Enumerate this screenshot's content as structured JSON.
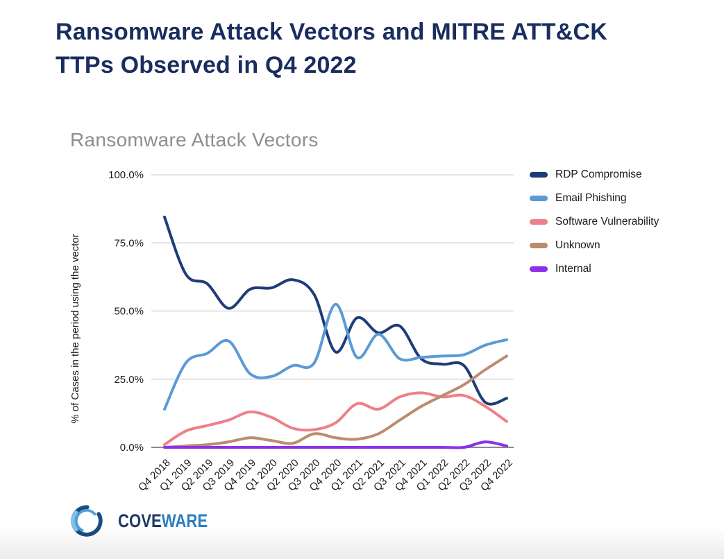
{
  "header": {
    "title_line1": "Ransomware Attack Vectors and MITRE ATT&CK",
    "title_line2": "TTPs Observed in Q4 2022"
  },
  "footer": {
    "logo_icon": "coveware-swirl-ring",
    "logo_text_primary": "COVE",
    "logo_text_secondary": "WARE"
  },
  "colors": {
    "page_title": "#1a2d5f",
    "chart_title": "#8e8e8e",
    "gridline": "#e4e4e4",
    "axis_baseline": "#8a8a8a",
    "logo_primary": "#1d3a68",
    "logo_secondary": "#2d7ec2"
  },
  "chart_data": {
    "type": "line",
    "title": "Ransomware Attack Vectors",
    "xlabel": "",
    "ylabel": "% of Cases in the period using the vector",
    "ylim": [
      0,
      100
    ],
    "yticks": [
      0,
      25,
      50,
      75,
      100
    ],
    "ytick_labels": [
      "0.0%",
      "25.0%",
      "50.0%",
      "75.0%",
      "100.0%"
    ],
    "grid": true,
    "legend_position": "right",
    "line_style": "smooth",
    "categories": [
      "Q4 2018",
      "Q1 2019",
      "Q2 2019",
      "Q3 2019",
      "Q4 2019",
      "Q1 2020",
      "Q2 2020",
      "Q3 2020",
      "Q4 2020",
      "Q1 2021",
      "Q2 2021",
      "Q3 2021",
      "Q4 2021",
      "Q1 2022",
      "Q2 2022",
      "Q3 2022",
      "Q4 2022"
    ],
    "series": [
      {
        "name": "RDP Compromise",
        "color": "#1e3d78",
        "values": [
          84.5,
          63.5,
          60,
          51,
          58,
          58.5,
          61.5,
          56,
          35,
          47.5,
          42,
          44.5,
          32.5,
          30.5,
          30,
          16.5,
          18
        ]
      },
      {
        "name": "Email Phishing",
        "color": "#5b9bd5",
        "values": [
          14,
          31,
          34.5,
          39,
          27,
          26,
          30,
          31,
          52.5,
          33,
          41.5,
          32.5,
          33,
          33.5,
          34,
          37.5,
          39.5
        ]
      },
      {
        "name": "Software Vulnerability",
        "color": "#ed8088",
        "values": [
          1,
          6,
          8,
          10,
          13,
          11,
          7,
          6.5,
          9,
          16,
          14,
          18.5,
          20,
          18.5,
          19,
          15,
          9.5
        ]
      },
      {
        "name": "Unknown",
        "color": "#bd8b6e",
        "values": [
          0,
          0.5,
          1,
          2,
          3.5,
          2.5,
          1.5,
          5,
          3.5,
          3,
          5,
          10,
          15,
          19,
          23,
          28.5,
          33.5
        ]
      },
      {
        "name": "Internal",
        "color": "#8e30e9",
        "values": [
          0,
          0,
          0,
          0,
          0,
          0,
          0,
          0,
          0,
          0,
          0,
          0,
          0,
          0,
          0,
          2,
          0.5
        ]
      }
    ]
  }
}
